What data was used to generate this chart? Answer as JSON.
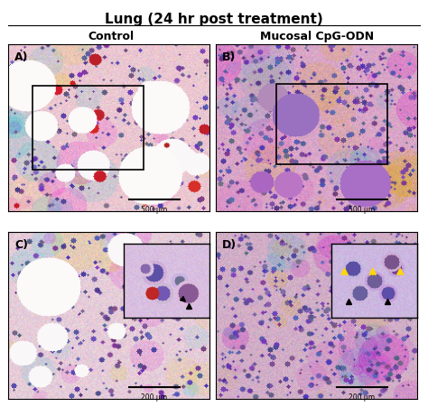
{
  "title": "Lung (24 hr post treatment)",
  "col_labels": [
    "Control",
    "Mucosal CpG-ODN"
  ],
  "panel_labels": [
    "A)",
    "B)",
    "C)",
    "D)"
  ],
  "scale_bar_texts": [
    "500 μm",
    "500 μm",
    "200 μm",
    "200 μm"
  ],
  "background_color": "#f5e8ee",
  "title_fontsize": 11,
  "col_label_fontsize": 9,
  "panel_label_fontsize": 9,
  "fig_bg": "#ffffff",
  "border_color": "#000000",
  "inset_border_color": "#000000"
}
